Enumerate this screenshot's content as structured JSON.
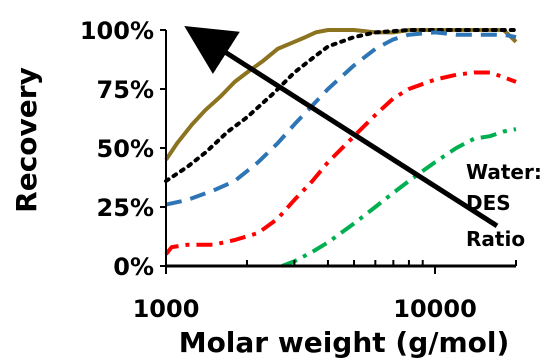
{
  "chart_data": {
    "type": "line",
    "xlabel": "Molar weight (g/mol)",
    "ylabel": "Recovery",
    "xscale": "log",
    "xlim": [
      1000,
      20000
    ],
    "ylim": [
      0,
      100
    ],
    "x_ticks": [
      {
        "value": 1000,
        "label": "1000"
      },
      {
        "value": 10000,
        "label": "10000"
      }
    ],
    "y_ticks": [
      {
        "value": 0,
        "label": "0%"
      },
      {
        "value": 25,
        "label": "25%"
      },
      {
        "value": 50,
        "label": "50%"
      },
      {
        "value": 75,
        "label": "75%"
      },
      {
        "value": 100,
        "label": "100%"
      }
    ],
    "grid": false,
    "legend": "none",
    "annotation": {
      "lines": [
        "Water:",
        "DES",
        "Ratio"
      ],
      "arrow": {
        "from": {
          "x": 17000,
          "y": 17
        },
        "to": {
          "x": 1400,
          "y": 96
        }
      }
    },
    "series": [
      {
        "color": "#8b7320",
        "dash": "solid",
        "points": [
          [
            1000,
            45
          ],
          [
            1100,
            52
          ],
          [
            1250,
            60
          ],
          [
            1400,
            66
          ],
          [
            1600,
            72
          ],
          [
            1800,
            78
          ],
          [
            2000,
            82
          ],
          [
            2300,
            87
          ],
          [
            2600,
            92
          ],
          [
            3000,
            95
          ],
          [
            3300,
            97
          ],
          [
            3600,
            99
          ],
          [
            4000,
            100
          ],
          [
            4500,
            100
          ],
          [
            5000,
            100
          ],
          [
            6000,
            99
          ],
          [
            7000,
            99
          ],
          [
            8000,
            100
          ],
          [
            10000,
            100
          ],
          [
            13000,
            100
          ],
          [
            16000,
            100
          ],
          [
            18000,
            100
          ],
          [
            20000,
            95
          ]
        ]
      },
      {
        "color": "#000000",
        "dash": "dotted",
        "points": [
          [
            1000,
            36
          ],
          [
            1200,
            42
          ],
          [
            1400,
            48
          ],
          [
            1700,
            57
          ],
          [
            2000,
            63
          ],
          [
            2500,
            73
          ],
          [
            3000,
            82
          ],
          [
            3500,
            88
          ],
          [
            4000,
            93
          ],
          [
            5000,
            97
          ],
          [
            6000,
            99
          ],
          [
            8000,
            100
          ],
          [
            10000,
            100
          ],
          [
            15000,
            100
          ],
          [
            20000,
            100
          ]
        ]
      },
      {
        "color": "#2e75b6",
        "dash": "dash",
        "points": [
          [
            1000,
            26
          ],
          [
            1200,
            28
          ],
          [
            1500,
            32
          ],
          [
            1800,
            36
          ],
          [
            2200,
            44
          ],
          [
            2600,
            52
          ],
          [
            3000,
            60
          ],
          [
            3500,
            68
          ],
          [
            4000,
            75
          ],
          [
            5000,
            85
          ],
          [
            6000,
            92
          ],
          [
            7000,
            96
          ],
          [
            8000,
            98
          ],
          [
            10000,
            99
          ],
          [
            12000,
            98
          ],
          [
            15000,
            98
          ],
          [
            18000,
            98
          ],
          [
            20000,
            97
          ]
        ]
      },
      {
        "color": "#ff0000",
        "dash": "dashdot",
        "points": [
          [
            1000,
            5
          ],
          [
            1050,
            8
          ],
          [
            1200,
            9
          ],
          [
            1500,
            9
          ],
          [
            1800,
            11
          ],
          [
            2200,
            14
          ],
          [
            2600,
            20
          ],
          [
            3000,
            28
          ],
          [
            3500,
            36
          ],
          [
            4000,
            44
          ],
          [
            5000,
            55
          ],
          [
            6000,
            64
          ],
          [
            7000,
            71
          ],
          [
            8000,
            75
          ],
          [
            10000,
            79
          ],
          [
            12000,
            81
          ],
          [
            14000,
            82
          ],
          [
            16000,
            82
          ],
          [
            18000,
            80
          ],
          [
            20000,
            78
          ]
        ]
      },
      {
        "color": "#00b050",
        "dash": "dashdot",
        "points": [
          [
            2700,
            0
          ],
          [
            3000,
            2
          ],
          [
            3500,
            6
          ],
          [
            4000,
            10
          ],
          [
            5000,
            18
          ],
          [
            6000,
            25
          ],
          [
            7000,
            31
          ],
          [
            8000,
            36
          ],
          [
            10000,
            44
          ],
          [
            12000,
            50
          ],
          [
            14000,
            54
          ],
          [
            16000,
            55
          ],
          [
            18000,
            57
          ],
          [
            20000,
            58
          ]
        ]
      }
    ]
  }
}
